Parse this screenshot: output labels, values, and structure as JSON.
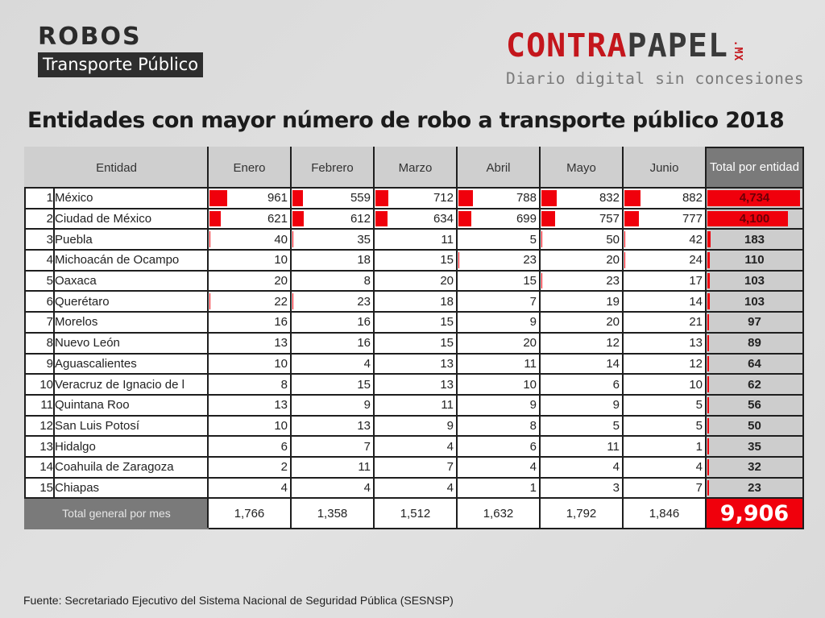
{
  "header": {
    "section_title": "ROBOS",
    "section_subtitle": "Transporte Público"
  },
  "logo": {
    "word_part1": "CONTRA",
    "word_part2": "PAPEL",
    "suffix": ".MX",
    "tagline": "Diario digital sin concesiones",
    "colors": {
      "red": "#c4161c",
      "dark": "#3a3a3a",
      "gray": "#7a7a7a"
    }
  },
  "source": "Fuente: Secretariado Ejecutivo del Sistema Nacional de Seguridad Pública (SESNSP)",
  "colors": {
    "bar": "#f0000c",
    "total_col_bg": "#cdcdcd",
    "header_bg": "#cfcfcf",
    "total_header_bg": "#7a7a7a"
  },
  "chart_data": {
    "type": "table",
    "title": "Entidades con mayor número de robo a transporte público 2018",
    "columns": [
      "Entidad",
      "Enero",
      "Febrero",
      "Marzo",
      "Abril",
      "Mayo",
      "Junio",
      "Total por entidad"
    ],
    "months": [
      "Enero",
      "Febrero",
      "Marzo",
      "Abril",
      "Mayo",
      "Junio"
    ],
    "total_header": "Total por entidad",
    "rows": [
      {
        "rank": 1,
        "entity": "México",
        "values": [
          961,
          559,
          712,
          788,
          832,
          882
        ],
        "total": 4734,
        "total_label": "4,734"
      },
      {
        "rank": 2,
        "entity": "Ciudad de México",
        "values": [
          621,
          612,
          634,
          699,
          757,
          777
        ],
        "total": 4100,
        "total_label": "4,100"
      },
      {
        "rank": 3,
        "entity": "Puebla",
        "values": [
          40,
          35,
          11,
          5,
          50,
          42
        ],
        "total": 183,
        "total_label": "183"
      },
      {
        "rank": 4,
        "entity": "Michoacán de Ocampo",
        "values": [
          10,
          18,
          15,
          23,
          20,
          24
        ],
        "total": 110,
        "total_label": "110"
      },
      {
        "rank": 5,
        "entity": "Oaxaca",
        "values": [
          20,
          8,
          20,
          15,
          23,
          17
        ],
        "total": 103,
        "total_label": "103"
      },
      {
        "rank": 6,
        "entity": "Querétaro",
        "values": [
          22,
          23,
          18,
          7,
          19,
          14
        ],
        "total": 103,
        "total_label": "103"
      },
      {
        "rank": 7,
        "entity": "Morelos",
        "values": [
          16,
          16,
          15,
          9,
          20,
          21
        ],
        "total": 97,
        "total_label": "97"
      },
      {
        "rank": 8,
        "entity": "Nuevo León",
        "values": [
          13,
          16,
          15,
          20,
          12,
          13
        ],
        "total": 89,
        "total_label": "89"
      },
      {
        "rank": 9,
        "entity": "Aguascalientes",
        "values": [
          10,
          4,
          13,
          11,
          14,
          12
        ],
        "total": 64,
        "total_label": "64"
      },
      {
        "rank": 10,
        "entity": "Veracruz de Ignacio de l",
        "values": [
          8,
          15,
          13,
          10,
          6,
          10
        ],
        "total": 62,
        "total_label": "62"
      },
      {
        "rank": 11,
        "entity": "Quintana Roo",
        "values": [
          13,
          9,
          11,
          9,
          9,
          5
        ],
        "total": 56,
        "total_label": "56"
      },
      {
        "rank": 12,
        "entity": "San Luis Potosí",
        "values": [
          10,
          13,
          9,
          8,
          5,
          5
        ],
        "total": 50,
        "total_label": "50"
      },
      {
        "rank": 13,
        "entity": "Hidalgo",
        "values": [
          6,
          7,
          4,
          6,
          11,
          1
        ],
        "total": 35,
        "total_label": "35"
      },
      {
        "rank": 14,
        "entity": "Coahuila de Zaragoza",
        "values": [
          2,
          11,
          7,
          4,
          4,
          4
        ],
        "total": 32,
        "total_label": "32"
      },
      {
        "rank": 15,
        "entity": "Chiapas",
        "values": [
          4,
          4,
          4,
          1,
          3,
          7
        ],
        "total": 23,
        "total_label": "23"
      }
    ],
    "footer": {
      "label": "Total general por mes",
      "month_totals": [
        1766,
        1358,
        1512,
        1632,
        1792,
        1846
      ],
      "month_total_labels": [
        "1,766",
        "1,358",
        "1,512",
        "1,632",
        "1,792",
        "1,846"
      ],
      "grand_total": 9906,
      "grand_total_label": "9,906"
    },
    "databar_scale": {
      "month_max": 961,
      "total_max": 4734
    }
  }
}
